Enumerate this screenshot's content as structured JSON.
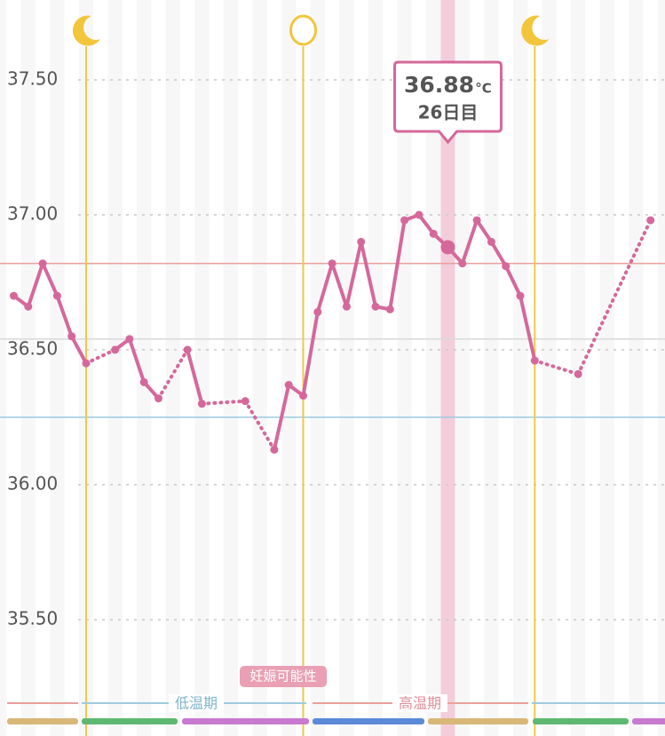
{
  "chart_data": {
    "type": "line",
    "categories": [
      null,
      null,
      null,
      null,
      null,
      null,
      null,
      null,
      null,
      null,
      null,
      null,
      null,
      null,
      null,
      null,
      null,
      null,
      null,
      null,
      null,
      null,
      null,
      null,
      null,
      null,
      null,
      null,
      null,
      null,
      null,
      null,
      null,
      null,
      null,
      null,
      null,
      null,
      null,
      null,
      null,
      null,
      null,
      null,
      null
    ],
    "series": [
      {
        "color": "#d5689a",
        "values": [
          36.7,
          36.66,
          36.82,
          36.7,
          36.55,
          36.45,
          null,
          36.5,
          36.54,
          36.38,
          36.32,
          null,
          36.5,
          36.3,
          null,
          null,
          36.31,
          null,
          36.13,
          36.37,
          36.33,
          36.64,
          36.82,
          36.66,
          36.9,
          36.66,
          36.65,
          36.98,
          37.0,
          36.93,
          36.88,
          36.82,
          36.98,
          36.9,
          36.81,
          36.7,
          36.46,
          null,
          null,
          36.41,
          null,
          null,
          null,
          null,
          36.98
        ]
      }
    ],
    "icons": [
      null,
      null,
      null,
      null,
      null,
      "moon",
      null,
      null,
      null,
      null,
      null,
      null,
      null,
      null,
      null,
      null,
      null,
      null,
      null,
      null,
      "ovulation",
      null,
      null,
      null,
      null,
      null,
      null,
      null,
      null,
      null,
      null,
      null,
      null,
      null,
      null,
      null,
      "moon",
      null,
      null,
      null,
      null,
      null,
      null,
      null,
      null
    ],
    "ylim": [
      35.2,
      37.8
    ],
    "yticks": [
      {
        "value": 35.5,
        "label": "35.50"
      },
      {
        "value": 36,
        "label": "36.00"
      },
      {
        "value": 36.5,
        "label": "36.50"
      },
      {
        "value": 37,
        "label": "37.00"
      },
      {
        "value": 37.5,
        "label": "37.50"
      }
    ],
    "grid": true,
    "reference_lines": [
      {
        "value": 36.82,
        "color": "#e9a09c"
      },
      {
        "value": 36.54,
        "color": "#d8d8d8"
      },
      {
        "value": 36.25,
        "color": "#9ccbe0"
      }
    ],
    "selected": 30,
    "tooltip": {
      "unit": "°C",
      "day_label": "26日目"
    },
    "fertility_label": "妊娠可能性",
    "phases": {
      "low": "低温期",
      "high": "高温期"
    }
  }
}
